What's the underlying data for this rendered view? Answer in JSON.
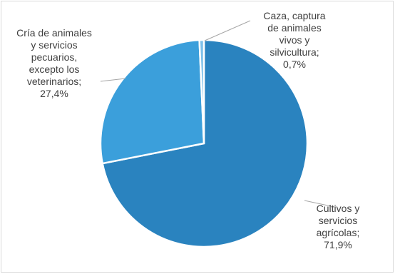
{
  "chart_data": {
    "type": "pie",
    "series": [
      {
        "name": "",
        "slices": [
          {
            "label": "Cultivos y servicios agrícolas",
            "value": 71.9,
            "display": [
              "Cultivos y",
              "servicios",
              "agrícolas;",
              "71,9%"
            ],
            "color": "#2a83bf"
          },
          {
            "label": "Cría de animales y servicios pecuarios, excepto los veterinarios",
            "value": 27.4,
            "display": [
              "Cría de animales",
              "y servicios",
              "pecuarios,",
              "excepto los",
              "veterinarios;",
              "27,4%"
            ],
            "color": "#3b9fdb"
          },
          {
            "label": "Caza, captura de animales vivos y silvicultura",
            "value": 0.7,
            "display": [
              "Caza, captura",
              "de animales",
              "vivos y",
              "silvicultura;",
              "0,7%"
            ],
            "color": "#7dc0ea"
          }
        ]
      }
    ],
    "start_angle": "12 o'clock",
    "direction": "clockwise",
    "legend": "none",
    "grid": false
  }
}
